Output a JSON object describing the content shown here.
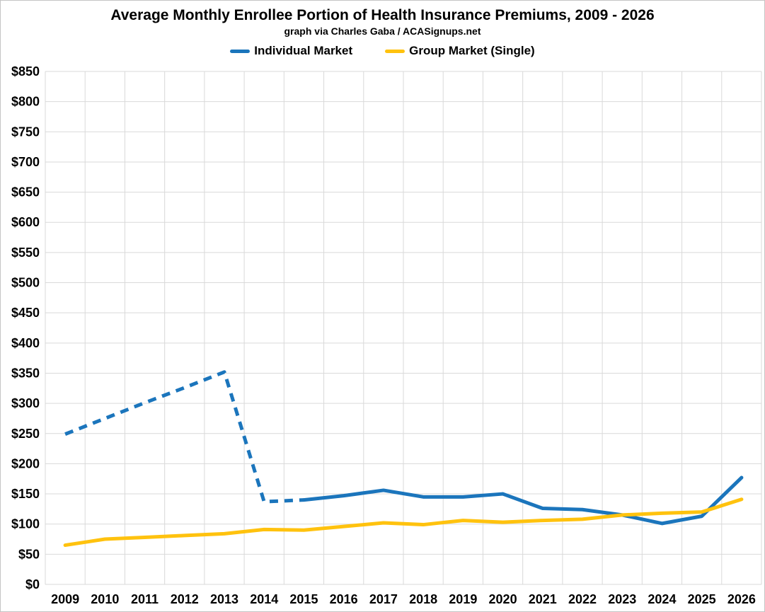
{
  "chart_data": {
    "type": "line",
    "title": "Average Monthly Enrollee Portion of Health Insurance Premiums, 2009 - 2026",
    "subtitle": "graph via Charles Gaba / ACASignups.net",
    "categories": [
      "2009",
      "2010",
      "2011",
      "2012",
      "2013",
      "2014",
      "2015",
      "2016",
      "2017",
      "2018",
      "2019",
      "2020",
      "2021",
      "2022",
      "2023",
      "2024",
      "2025",
      "2026"
    ],
    "series": [
      {
        "name": "Individual Market",
        "color": "#1b75bc",
        "values": [
          249,
          275,
          301,
          326,
          352,
          137,
          140,
          147,
          156,
          145,
          145,
          150,
          126,
          124,
          115,
          101,
          113,
          177
        ],
        "dashed_through_index": 6
      },
      {
        "name": "Group Market (Single)",
        "color": "#ffc20e",
        "values": [
          65,
          75,
          78,
          81,
          84,
          91,
          90,
          96,
          102,
          99,
          106,
          103,
          106,
          108,
          115,
          118,
          120,
          141
        ],
        "dashed_through_index": null
      }
    ],
    "ylim": [
      0,
      850
    ],
    "ytick_step": 50,
    "y_tick_labels": [
      "$0",
      "$50",
      "$100",
      "$150",
      "$200",
      "$250",
      "$300",
      "$350",
      "$400",
      "$450",
      "$500",
      "$550",
      "$600",
      "$650",
      "$700",
      "$750",
      "$800",
      "$850"
    ],
    "xlabel": "",
    "ylabel": "",
    "grid": true,
    "legend_position": "top",
    "gridline_color": "#d9d9d9",
    "line_width": 5
  }
}
